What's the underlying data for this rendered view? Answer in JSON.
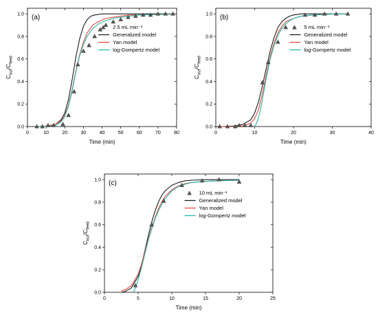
{
  "chart_data": [
    {
      "type": "line",
      "panel_label": "(a)",
      "xlabel": "Time (min)",
      "ylabel_main": "C",
      "ylabel_sub1": "out",
      "ylabel_mid": "/C",
      "ylabel_sub2": "feed",
      "xlim": [
        0,
        80
      ],
      "ylim": [
        0,
        1.05
      ],
      "xticks": [
        0,
        10,
        20,
        30,
        40,
        50,
        60,
        70,
        80
      ],
      "yticks": [
        0.0,
        0.2,
        0.4,
        0.6,
        0.8,
        1.0
      ],
      "legend_position": "right",
      "legend": {
        "experimental": "2.5 mL min⁻¹",
        "generalized": "Generalized model",
        "yan": "Yan model",
        "gompertz": "log-Gompertz model"
      },
      "experimental": {
        "x": [
          5,
          8,
          11,
          14,
          19,
          22,
          25,
          27,
          30,
          33,
          36,
          39,
          42,
          46,
          50,
          54,
          58,
          62,
          66,
          70,
          74,
          78
        ],
        "y": [
          0.0,
          0.0,
          0.01,
          0.01,
          0.02,
          0.1,
          0.31,
          0.55,
          0.67,
          0.72,
          0.8,
          0.86,
          0.9,
          0.93,
          0.95,
          0.97,
          0.98,
          0.99,
          0.99,
          1.0,
          1.0,
          1.0
        ]
      },
      "series": [
        {
          "name": "Generalized model",
          "color": "#1a1a1a",
          "x": [
            5,
            10,
            15,
            18,
            20,
            22,
            24,
            26,
            28,
            30,
            32,
            34,
            36,
            40,
            45,
            50,
            60,
            70,
            79
          ],
          "y": [
            0.0,
            0.002,
            0.02,
            0.06,
            0.12,
            0.24,
            0.42,
            0.62,
            0.78,
            0.89,
            0.95,
            0.98,
            0.99,
            1.0,
            1.0,
            1.0,
            1.0,
            1.0,
            1.0
          ]
        },
        {
          "name": "Yan model",
          "color": "#e8453c",
          "x": [
            5,
            10,
            15,
            18,
            20,
            22,
            24,
            26,
            28,
            30,
            32,
            35,
            38,
            42,
            46,
            50,
            55,
            60,
            70,
            79
          ],
          "y": [
            0.0,
            0.003,
            0.02,
            0.05,
            0.1,
            0.19,
            0.33,
            0.5,
            0.64,
            0.75,
            0.83,
            0.9,
            0.93,
            0.96,
            0.97,
            0.98,
            0.99,
            0.99,
            0.995,
            1.0
          ]
        },
        {
          "name": "log-Gompertz model",
          "color": "#1fb5a8",
          "x": [
            5,
            10,
            15,
            18,
            20,
            22,
            24,
            26,
            28,
            30,
            32,
            35,
            38,
            42,
            46,
            50,
            55,
            60,
            70,
            79
          ],
          "y": [
            0.0,
            0.0,
            0.01,
            0.04,
            0.09,
            0.18,
            0.32,
            0.49,
            0.63,
            0.73,
            0.8,
            0.87,
            0.91,
            0.94,
            0.96,
            0.97,
            0.98,
            0.99,
            0.995,
            0.998
          ]
        }
      ]
    },
    {
      "type": "line",
      "panel_label": "(b)",
      "xlabel": "Time (min)",
      "ylabel_main": "C",
      "ylabel_sub1": "out",
      "ylabel_mid": "/C",
      "ylabel_sub2": "feed",
      "xlim": [
        0,
        40
      ],
      "ylim": [
        0,
        1.05
      ],
      "xticks": [
        0,
        10,
        20,
        30,
        40
      ],
      "yticks": [
        0.0,
        0.2,
        0.4,
        0.6,
        0.8,
        1.0
      ],
      "legend_position": "right",
      "legend": {
        "experimental": "5 mL min⁻¹",
        "generalized": "Generalized model",
        "yan": "Yan model",
        "gompertz": "log-Gompertz model"
      },
      "experimental": {
        "x": [
          1,
          3,
          5,
          6,
          7.5,
          9,
          12,
          13.5,
          16,
          18,
          23,
          25.5,
          28,
          31,
          34
        ],
        "y": [
          0.0,
          0.0,
          0.0,
          0.01,
          0.01,
          0.01,
          0.39,
          0.57,
          0.75,
          0.88,
          0.99,
          0.99,
          1.0,
          1.0,
          1.0
        ]
      },
      "series": [
        {
          "name": "Generalized model",
          "color": "#1a1a1a",
          "x": [
            1,
            5,
            7,
            9,
            10,
            11,
            12,
            13,
            14,
            15,
            16,
            17,
            18,
            19,
            20,
            22,
            25,
            30,
            34
          ],
          "y": [
            0.0,
            0.005,
            0.02,
            0.06,
            0.12,
            0.22,
            0.36,
            0.52,
            0.67,
            0.79,
            0.88,
            0.93,
            0.96,
            0.98,
            0.99,
            1.0,
            1.0,
            1.0,
            1.0
          ]
        },
        {
          "name": "Yan model",
          "color": "#e8453c",
          "x": [
            1,
            5,
            7,
            9,
            10,
            11,
            12,
            13,
            14,
            15,
            16,
            17,
            18,
            20,
            22,
            25,
            28,
            31,
            34
          ],
          "y": [
            0.0,
            0.0,
            0.005,
            0.03,
            0.07,
            0.15,
            0.29,
            0.46,
            0.62,
            0.74,
            0.83,
            0.89,
            0.93,
            0.96,
            0.98,
            0.99,
            0.995,
            1.0,
            1.0
          ]
        },
        {
          "name": "log-Gompertz model",
          "color": "#1fb5a8",
          "x": [
            10,
            10.5,
            11,
            11.5,
            12,
            13,
            14,
            15,
            16,
            17,
            18,
            19,
            20,
            22,
            25,
            28,
            31,
            34
          ],
          "y": [
            0.0,
            0.03,
            0.08,
            0.15,
            0.24,
            0.43,
            0.6,
            0.72,
            0.81,
            0.87,
            0.91,
            0.94,
            0.96,
            0.98,
            0.99,
            0.995,
            1.0,
            1.0
          ]
        }
      ]
    },
    {
      "type": "line",
      "panel_label": "(c)",
      "xlabel": "Time (min)",
      "ylabel_main": "C",
      "ylabel_sub1": "out",
      "ylabel_mid": "/C",
      "ylabel_sub2": "feed",
      "xlim": [
        0,
        25
      ],
      "ylim": [
        0,
        1.05
      ],
      "xticks": [
        0,
        5,
        10,
        15,
        20,
        25
      ],
      "yticks": [
        0.0,
        0.2,
        0.4,
        0.6,
        0.8,
        1.0
      ],
      "legend_position": "right",
      "legend": {
        "experimental": "10 mL min⁻¹",
        "generalized": "Generalized model",
        "yan": "Yan model",
        "gompertz": "log-Gompertz model"
      },
      "experimental": {
        "x": [
          4.6,
          7.0,
          8.8,
          11.5,
          14.5,
          17.0,
          20.0
        ],
        "y": [
          0.06,
          0.6,
          0.81,
          0.95,
          0.99,
          1.0,
          0.98
        ]
      },
      "series": [
        {
          "name": "Generalized model",
          "color": "#1a1a1a",
          "x": [
            2.5,
            3,
            4,
            5,
            5.5,
            6,
            6.5,
            7,
            7.5,
            8,
            8.5,
            9,
            10,
            11,
            12,
            13,
            15,
            17,
            20
          ],
          "y": [
            0.0,
            0.005,
            0.04,
            0.14,
            0.24,
            0.37,
            0.5,
            0.62,
            0.72,
            0.8,
            0.86,
            0.9,
            0.95,
            0.975,
            0.99,
            0.995,
            1.0,
            1.0,
            1.0
          ]
        },
        {
          "name": "Yan model",
          "color": "#e8453c",
          "x": [
            2.5,
            3,
            4,
            5,
            5.5,
            6,
            6.5,
            7,
            7.5,
            8,
            8.5,
            9,
            10,
            11,
            12,
            13,
            15,
            17,
            20
          ],
          "y": [
            0.01,
            0.02,
            0.06,
            0.16,
            0.25,
            0.36,
            0.47,
            0.57,
            0.66,
            0.74,
            0.8,
            0.85,
            0.91,
            0.945,
            0.965,
            0.975,
            0.985,
            0.99,
            0.995
          ]
        },
        {
          "name": "log-Gompertz model",
          "color": "#1fb5a8",
          "x": [
            4.3,
            4.6,
            5,
            5.5,
            6,
            6.5,
            7,
            7.5,
            8,
            8.5,
            9,
            10,
            11,
            12,
            13,
            15,
            17,
            20
          ],
          "y": [
            0.0,
            0.04,
            0.11,
            0.22,
            0.34,
            0.46,
            0.56,
            0.65,
            0.72,
            0.78,
            0.83,
            0.9,
            0.94,
            0.96,
            0.975,
            0.985,
            0.99,
            0.995
          ]
        }
      ]
    }
  ]
}
